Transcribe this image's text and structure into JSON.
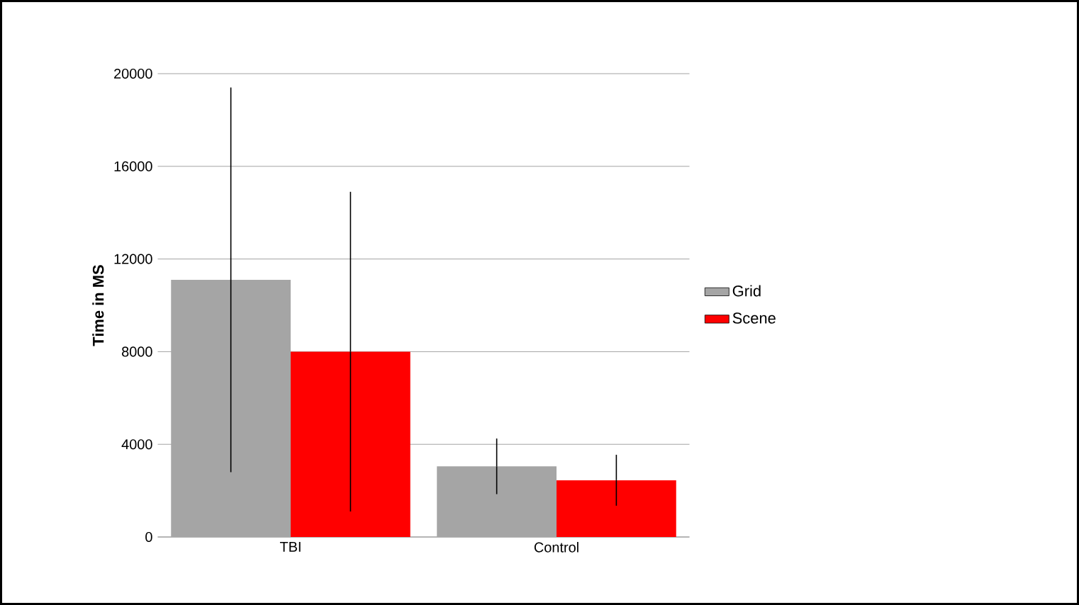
{
  "chart_data": {
    "type": "bar",
    "ylabel": "Time in MS",
    "categories": [
      "TBI",
      "Control"
    ],
    "series": [
      {
        "name": "Grid",
        "color": "#a5a5a5",
        "values": [
          11100,
          3050
        ],
        "errors": [
          8300,
          1200
        ]
      },
      {
        "name": "Scene",
        "color": "#ff0000",
        "values": [
          8000,
          2450
        ],
        "errors": [
          6900,
          1100
        ]
      }
    ],
    "ylim": [
      0,
      20000
    ],
    "yticks": [
      0,
      4000,
      8000,
      12000,
      16000,
      20000
    ],
    "grid": "y",
    "legend": "right"
  }
}
